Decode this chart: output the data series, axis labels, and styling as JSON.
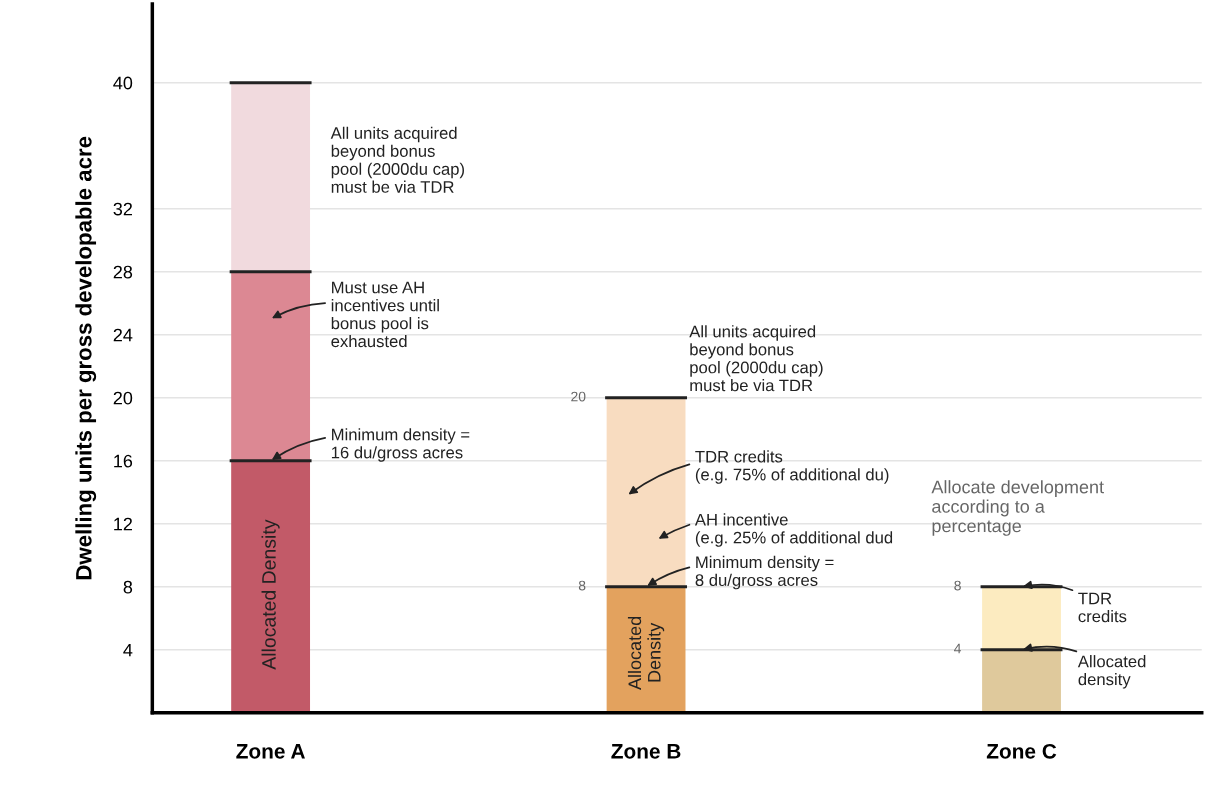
{
  "chart_data": {
    "type": "bar",
    "stacked": true,
    "ylabel": "Dwelling units per gross developable acre",
    "categories": [
      "Zone A",
      "Zone B",
      "Zone C"
    ],
    "series": [
      {
        "values": [
          16,
          8,
          4
        ],
        "colors": [
          "#c25a68",
          "#e3a25e",
          "#dfc99c"
        ]
      },
      {
        "values": [
          12,
          12,
          4
        ],
        "colors": [
          "#dc8893",
          "#f8dcc0",
          "#fcebc0"
        ]
      },
      {
        "values": [
          12,
          null,
          null
        ],
        "colors": [
          "#f1dade",
          "#f1dade",
          "#f1dade"
        ]
      }
    ],
    "ylim": [
      0,
      45
    ],
    "yticks": [
      4,
      8,
      12,
      16,
      20,
      24,
      28,
      32,
      40
    ],
    "grid": "y",
    "annotations": [
      "All units acquired\nbeyond bonus\npool (2000du cap)\nmust be via TDR",
      "Must use AH\nincentives until\nbonus pool is\nexhausted",
      {
        "text": "Minimum density =\n16 du/gross acres",
        "x": "Zone A",
        "y": 16
      },
      {
        "text": "All units acquired\nbeyond bonus\npool (2000du cap)\nmust be via TDR",
        "x": "Zone B",
        "y": 20
      },
      "TDR credits\n(e.g. 75% of additional du)",
      "AH incentive\n(e.g. 25% of additional dud",
      {
        "text": "Minimum density =\n8 du/gross acres",
        "x": "Zone B",
        "y": 8
      },
      "Allocate development\naccording to a\npercentage",
      {
        "text": "TDR\ncredits",
        "x": "Zone C",
        "y": 8
      },
      {
        "text": "Allocated\ndensity",
        "x": "Zone C",
        "y": 4
      },
      "Allocated Density",
      "Allocated\nDensity",
      "20",
      "8",
      "8",
      "4"
    ]
  }
}
